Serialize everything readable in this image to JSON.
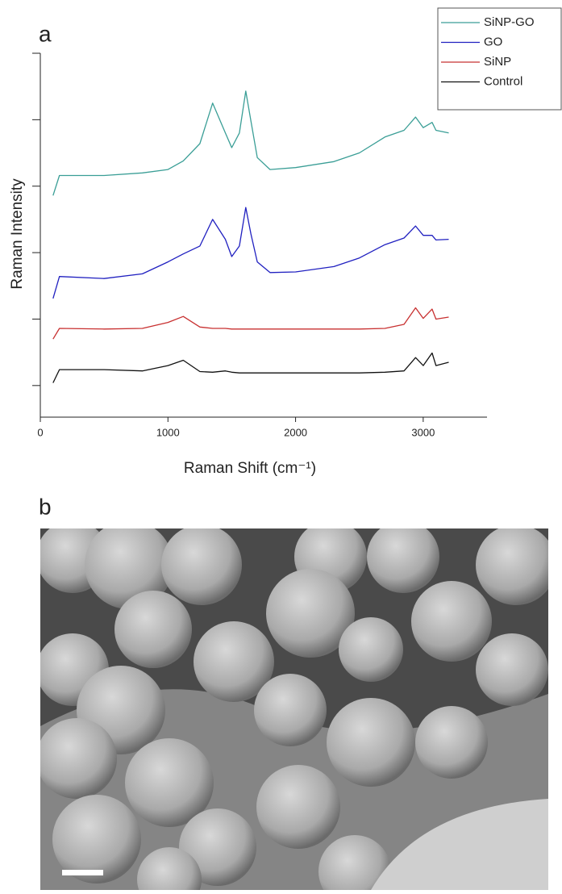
{
  "chart_data": {
    "type": "line",
    "panel_label": "a",
    "xlabel": "Raman Shift (cm⁻¹)",
    "ylabel": "Raman Intensity",
    "x": [
      100,
      150,
      500,
      800,
      1000,
      1120,
      1250,
      1350,
      1450,
      1500,
      1560,
      1610,
      1650,
      1700,
      1800,
      2000,
      2300,
      2500,
      2700,
      2850,
      2940,
      3000,
      3070,
      3100,
      3200
    ],
    "series": [
      {
        "name": "SiNP-GO",
        "color": "#3a9e96",
        "values": [
          3.86,
          4.16,
          4.16,
          4.2,
          4.25,
          4.38,
          4.64,
          5.25,
          4.8,
          4.58,
          4.8,
          5.43,
          4.98,
          4.43,
          4.25,
          4.28,
          4.37,
          4.5,
          4.74,
          4.84,
          5.04,
          4.88,
          4.96,
          4.84,
          4.8
        ]
      },
      {
        "name": "GO",
        "color": "#2020c0",
        "values": [
          2.31,
          2.64,
          2.61,
          2.68,
          2.86,
          2.98,
          3.1,
          3.5,
          3.2,
          2.94,
          3.1,
          3.68,
          3.28,
          2.86,
          2.7,
          2.71,
          2.79,
          2.92,
          3.12,
          3.22,
          3.4,
          3.26,
          3.26,
          3.19,
          3.2
        ]
      },
      {
        "name": "SiNP",
        "color": "#c83030",
        "values": [
          1.7,
          1.86,
          1.85,
          1.86,
          1.95,
          2.04,
          1.88,
          1.86,
          1.86,
          1.85,
          1.85,
          1.85,
          1.85,
          1.85,
          1.85,
          1.85,
          1.85,
          1.85,
          1.86,
          1.92,
          2.17,
          2.01,
          2.15,
          2.0,
          2.03
        ]
      },
      {
        "name": "Control",
        "color": "#111111",
        "values": [
          1.04,
          1.24,
          1.24,
          1.22,
          1.3,
          1.38,
          1.21,
          1.2,
          1.22,
          1.2,
          1.19,
          1.19,
          1.19,
          1.19,
          1.19,
          1.19,
          1.19,
          1.19,
          1.2,
          1.22,
          1.42,
          1.3,
          1.49,
          1.3,
          1.35
        ]
      }
    ],
    "xlim": [
      0,
      3500
    ],
    "xticks": [
      0,
      1000,
      2000,
      3000
    ],
    "ylim": [
      0.5,
      6
    ],
    "yticks": [
      1,
      2,
      3,
      4,
      5,
      6
    ],
    "legend": "top-right"
  },
  "image_panel": {
    "label": "b"
  }
}
